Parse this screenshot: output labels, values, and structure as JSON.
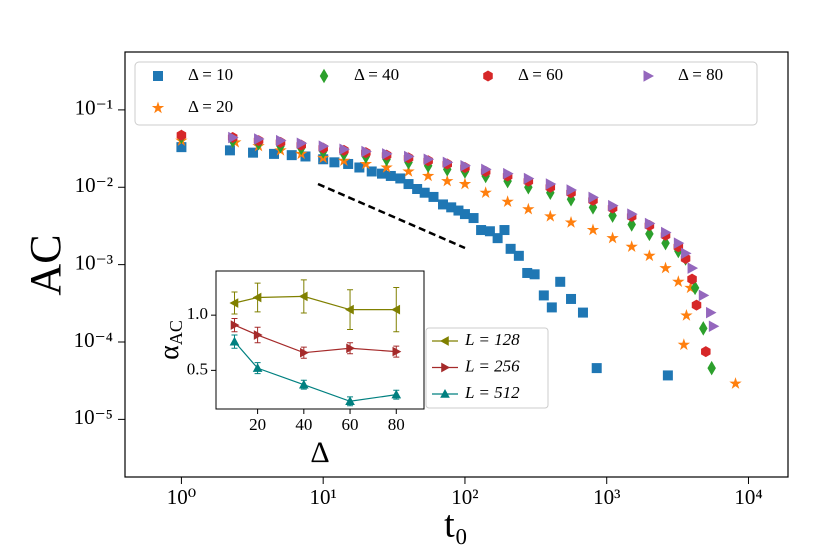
{
  "chart_data": [
    {
      "type": "scatter",
      "ylabel": "AC",
      "xlabel": "t₀",
      "xscale": "log",
      "yscale": "log",
      "xlim": [
        0.4,
        19000
      ],
      "ylim": [
        1.8e-06,
        0.56
      ],
      "xticks": [
        {
          "value": 1,
          "label": "10⁰"
        },
        {
          "value": 10,
          "label": "10¹"
        },
        {
          "value": 100,
          "label": "10²"
        },
        {
          "value": 1000,
          "label": "10³"
        },
        {
          "value": 10000,
          "label": "10⁴"
        }
      ],
      "yticks": [
        {
          "value": 1e-05,
          "label": "10⁻⁵"
        },
        {
          "value": 0.0001,
          "label": "10⁻⁴"
        },
        {
          "value": 0.001,
          "label": "10⁻³"
        },
        {
          "value": 0.01,
          "label": "10⁻²"
        },
        {
          "value": 0.1,
          "label": "10⁻¹"
        }
      ],
      "series": [
        {
          "name": "Δ = 10",
          "color": "#1f77b4",
          "marker": "square",
          "x": [
            1,
            2.2,
            3.2,
            4.5,
            6,
            7.5,
            10,
            12,
            15,
            18,
            22,
            26,
            30,
            35,
            40,
            46,
            52,
            60,
            70,
            80,
            90,
            100,
            115,
            130,
            150,
            170,
            190,
            210,
            240,
            275,
            310,
            360,
            410,
            470,
            560,
            680,
            850,
            2700
          ],
          "y": [
            0.033,
            0.03,
            0.028,
            0.027,
            0.026,
            0.025,
            0.023,
            0.021,
            0.02,
            0.018,
            0.016,
            0.015,
            0.014,
            0.013,
            0.011,
            0.0095,
            0.0085,
            0.0075,
            0.006,
            0.0055,
            0.005,
            0.0045,
            0.004,
            0.0028,
            0.0027,
            0.0022,
            0.0028,
            0.0016,
            0.0013,
            0.00078,
            0.00075,
            0.0004,
            0.00028,
            0.0006,
            0.00036,
            0.00024,
            4.6e-05,
            3.7e-05
          ]
        },
        {
          "name": "Δ = 20",
          "color": "#ff7f0e",
          "marker": "star",
          "x": [
            1,
            2.4,
            3.5,
            5,
            7,
            10,
            14,
            20,
            28,
            40,
            55,
            75,
            100,
            140,
            200,
            280,
            400,
            560,
            800,
            1100,
            1500,
            2000,
            2600,
            3200,
            3500,
            3650,
            3900,
            8100
          ],
          "y": [
            0.04,
            0.038,
            0.034,
            0.03,
            0.027,
            0.024,
            0.022,
            0.02,
            0.018,
            0.016,
            0.014,
            0.012,
            0.011,
            0.0085,
            0.0065,
            0.0052,
            0.0042,
            0.0035,
            0.0028,
            0.0022,
            0.0017,
            0.0013,
            0.0009,
            0.0006,
            9.2e-05,
            0.00022,
            0.0005,
            2.9e-05
          ]
        },
        {
          "name": "Δ = 40",
          "color": "#2ca02c",
          "marker": "diamond",
          "x": [
            1,
            2.3,
            3.5,
            5,
            7,
            10,
            14,
            20,
            28,
            40,
            55,
            75,
            100,
            140,
            200,
            280,
            400,
            560,
            800,
            1100,
            1500,
            2000,
            2600,
            3200,
            3600,
            4200,
            4800,
            5500
          ],
          "y": [
            0.045,
            0.04,
            0.037,
            0.034,
            0.032,
            0.029,
            0.027,
            0.025,
            0.023,
            0.021,
            0.019,
            0.017,
            0.016,
            0.014,
            0.012,
            0.01,
            0.0085,
            0.007,
            0.0055,
            0.0043,
            0.0033,
            0.0025,
            0.0019,
            0.0015,
            0.0012,
            0.0005,
            0.00015,
            4.6e-05
          ]
        },
        {
          "name": "Δ = 60",
          "color": "#d62728",
          "marker": "hexagon",
          "x": [
            1,
            2.3,
            3.5,
            5,
            7,
            10,
            14,
            20,
            28,
            40,
            55,
            75,
            100,
            140,
            200,
            280,
            400,
            560,
            800,
            1100,
            1500,
            2000,
            2600,
            3200,
            3600,
            4000,
            4300,
            5000
          ],
          "y": [
            0.047,
            0.044,
            0.04,
            0.038,
            0.035,
            0.032,
            0.03,
            0.028,
            0.026,
            0.024,
            0.022,
            0.02,
            0.018,
            0.016,
            0.014,
            0.012,
            0.01,
            0.0085,
            0.0068,
            0.0054,
            0.0042,
            0.0032,
            0.0024,
            0.0017,
            0.0012,
            0.00065,
            0.0003,
            7.5e-05
          ]
        },
        {
          "name": "Δ = 80",
          "color": "#9467bd",
          "marker": "triangle-right",
          "x": [
            2.3,
            3.5,
            5,
            7,
            10,
            14,
            20,
            28,
            40,
            55,
            75,
            100,
            140,
            200,
            280,
            400,
            560,
            800,
            1100,
            1500,
            2000,
            2600,
            3200,
            3600,
            4000,
            4800,
            5400,
            5650
          ],
          "y": [
            0.044,
            0.042,
            0.04,
            0.037,
            0.034,
            0.031,
            0.029,
            0.027,
            0.025,
            0.023,
            0.021,
            0.019,
            0.017,
            0.015,
            0.013,
            0.011,
            0.0092,
            0.0074,
            0.0058,
            0.0045,
            0.0034,
            0.0026,
            0.0019,
            0.0014,
            0.0009,
            0.0004,
            0.00024,
            0.00016
          ]
        }
      ]
    },
    {
      "type": "line",
      "xlabel": "Δ",
      "ylabel": "α",
      "ylabel_subscript": "AC",
      "xlim": [
        2,
        92
      ],
      "ylim": [
        0.15,
        1.4
      ],
      "xticks": [
        20,
        40,
        60,
        80
      ],
      "yticks": [
        0.5,
        {
          "value": 1,
          "label": "1.0"
        }
      ],
      "x": [
        10,
        20,
        40,
        60,
        80
      ],
      "series": [
        {
          "name": "L = 128",
          "color": "#808000",
          "marker": "triangle-left",
          "values": [
            1.11,
            1.16,
            1.17,
            1.05,
            1.05
          ],
          "errors": [
            0.1,
            0.13,
            0.15,
            0.18,
            0.2
          ]
        },
        {
          "name": "L = 256",
          "color": "#a52a2a",
          "marker": "triangle-right",
          "values": [
            0.91,
            0.82,
            0.66,
            0.7,
            0.67
          ],
          "errors": [
            0.06,
            0.07,
            0.05,
            0.05,
            0.05
          ]
        },
        {
          "name": "L = 512",
          "color": "#008080",
          "marker": "triangle-up",
          "values": [
            0.76,
            0.52,
            0.37,
            0.22,
            0.28
          ],
          "errors": [
            0.06,
            0.05,
            0.04,
            0.04,
            0.04
          ]
        }
      ]
    }
  ]
}
